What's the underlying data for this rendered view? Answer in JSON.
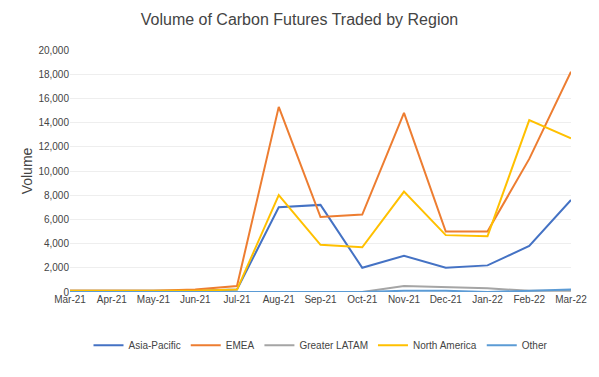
{
  "chart_data": {
    "type": "line",
    "title": "Volume of Carbon Futures Traded by Region",
    "ylabel": "Volume",
    "categories": [
      "Mar-21",
      "Apr-21",
      "May-21",
      "Jun-21",
      "Jul-21",
      "Aug-21",
      "Sep-21",
      "Oct-21",
      "Nov-21",
      "Dec-21",
      "Jan-22",
      "Feb-22",
      "Mar-22"
    ],
    "series": [
      {
        "name": "Asia-Pacific",
        "color": "#4472C4",
        "values": [
          100,
          100,
          100,
          100,
          200,
          7000,
          7200,
          2000,
          3000,
          2000,
          2200,
          3800,
          7600
        ]
      },
      {
        "name": "EMEA",
        "color": "#ED7D31",
        "values": [
          100,
          100,
          100,
          200,
          500,
          15300,
          6200,
          6400,
          14800,
          5000,
          5000,
          11000,
          18200
        ]
      },
      {
        "name": "Greater LATAM",
        "color": "#A5A5A5",
        "values": [
          0,
          0,
          0,
          0,
          0,
          0,
          0,
          0,
          500,
          400,
          300,
          100,
          100
        ]
      },
      {
        "name": "North America",
        "color": "#FFC000",
        "values": [
          100,
          100,
          100,
          100,
          200,
          8000,
          3900,
          3700,
          8300,
          4700,
          4600,
          14200,
          12700
        ]
      },
      {
        "name": "Other",
        "color": "#5B9BD5",
        "values": [
          0,
          0,
          0,
          0,
          0,
          0,
          0,
          0,
          100,
          100,
          0,
          100,
          200
        ]
      }
    ],
    "ylim": [
      0,
      20000
    ],
    "yticks": [
      0,
      {
        "value": 2000,
        "label": "2,000"
      },
      {
        "value": 4000,
        "label": "4,000"
      },
      {
        "value": 6000,
        "label": "6,000"
      },
      {
        "value": 8000,
        "label": "8,000"
      },
      {
        "value": 10000,
        "label": "10,000"
      },
      {
        "value": 12000,
        "label": "12,000"
      },
      {
        "value": 14000,
        "label": "14,000"
      },
      {
        "value": 16000,
        "label": "16,000"
      },
      {
        "value": 18000,
        "label": "18,000"
      },
      {
        "value": 20000,
        "label": "20,000"
      }
    ],
    "grid": true,
    "legend": "bottom"
  }
}
